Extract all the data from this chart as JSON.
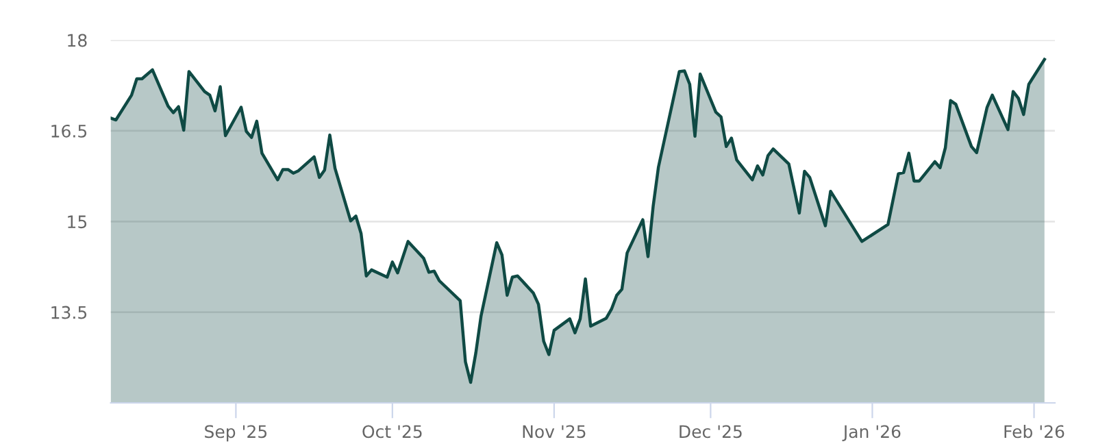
{
  "chart_data": {
    "type": "area",
    "x": [
      "2025-08-08",
      "2025-08-09",
      "2025-08-12",
      "2025-08-13",
      "2025-08-14",
      "2025-08-16",
      "2025-08-19",
      "2025-08-20",
      "2025-08-21",
      "2025-08-22",
      "2025-08-23",
      "2025-08-26",
      "2025-08-27",
      "2025-08-28",
      "2025-08-29",
      "2025-08-30",
      "2025-09-02",
      "2025-09-03",
      "2025-09-04",
      "2025-09-05",
      "2025-09-06",
      "2025-09-09",
      "2025-09-10",
      "2025-09-11",
      "2025-09-12",
      "2025-09-13",
      "2025-09-16",
      "2025-09-17",
      "2025-09-18",
      "2025-09-19",
      "2025-09-20",
      "2025-09-23",
      "2025-09-24",
      "2025-09-25",
      "2025-09-26",
      "2025-09-27",
      "2025-09-30",
      "2025-10-01",
      "2025-10-02",
      "2025-10-04",
      "2025-10-07",
      "2025-10-08",
      "2025-10-09",
      "2025-10-10",
      "2025-10-14",
      "2025-10-15",
      "2025-10-16",
      "2025-10-17",
      "2025-10-18",
      "2025-10-21",
      "2025-10-22",
      "2025-10-23",
      "2025-10-24",
      "2025-10-25",
      "2025-10-28",
      "2025-10-29",
      "2025-10-30",
      "2025-10-31",
      "2025-11-01",
      "2025-11-04",
      "2025-11-05",
      "2025-11-06",
      "2025-11-07",
      "2025-11-08",
      "2025-11-11",
      "2025-11-12",
      "2025-11-13",
      "2025-11-14",
      "2025-11-15",
      "2025-11-18",
      "2025-11-19",
      "2025-11-20",
      "2025-11-21",
      "2025-11-25",
      "2025-11-26",
      "2025-11-27",
      "2025-11-28",
      "2025-11-29",
      "2025-12-02",
      "2025-12-03",
      "2025-12-04",
      "2025-12-05",
      "2025-12-06",
      "2025-12-09",
      "2025-12-10",
      "2025-12-11",
      "2025-12-12",
      "2025-12-13",
      "2025-12-16",
      "2025-12-18",
      "2025-12-19",
      "2025-12-20",
      "2025-12-23",
      "2025-12-24",
      "2025-12-30",
      "2026-01-04",
      "2026-01-06",
      "2026-01-07",
      "2026-01-08",
      "2026-01-09",
      "2026-01-10",
      "2026-01-13",
      "2026-01-14",
      "2026-01-15",
      "2026-01-16",
      "2026-01-17",
      "2026-01-20",
      "2026-01-21",
      "2026-01-23",
      "2026-01-24",
      "2026-01-27",
      "2026-01-28",
      "2026-01-29",
      "2026-01-30",
      "2026-01-31",
      "2026-02-03"
    ],
    "series": [
      {
        "color": "#0f4a44",
        "values": [
          16.71,
          16.68,
          17.09,
          17.36,
          17.36,
          17.51,
          16.91,
          16.8,
          16.9,
          16.51,
          17.48,
          17.15,
          17.09,
          16.83,
          17.23,
          16.42,
          16.89,
          16.49,
          16.39,
          16.66,
          16.13,
          15.69,
          15.86,
          15.86,
          15.8,
          15.84,
          16.07,
          15.73,
          15.85,
          16.43,
          15.88,
          15.01,
          15.09,
          14.8,
          14.1,
          14.2,
          14.08,
          14.33,
          14.15,
          14.67,
          14.39,
          14.16,
          14.18,
          14.02,
          13.69,
          12.68,
          12.34,
          12.83,
          13.44,
          14.65,
          14.45,
          13.78,
          14.08,
          14.1,
          13.82,
          13.63,
          13.02,
          12.8,
          13.2,
          13.39,
          13.16,
          13.39,
          14.05,
          13.27,
          13.4,
          13.55,
          13.78,
          13.88,
          14.48,
          15.03,
          14.42,
          15.26,
          15.9,
          17.48,
          17.49,
          17.27,
          16.41,
          17.44,
          16.81,
          16.73,
          16.24,
          16.38,
          16.02,
          15.69,
          15.92,
          15.77,
          16.09,
          16.2,
          15.95,
          15.14,
          15.83,
          15.73,
          14.93,
          15.5,
          14.67,
          14.95,
          15.79,
          15.81,
          16.13,
          15.67,
          15.67,
          15.99,
          15.89,
          16.22,
          17.0,
          16.94,
          16.24,
          16.14,
          16.89,
          17.09,
          16.52,
          17.15,
          17.04,
          16.77,
          17.27,
          17.68
        ]
      }
    ],
    "xlim": [
      "2025-08-08",
      "2026-02-05"
    ],
    "xticks": [
      {
        "value": "2025-09-01",
        "label": "Sep '25"
      },
      {
        "value": "2025-10-01",
        "label": "Oct '25"
      },
      {
        "value": "2025-11-01",
        "label": "Nov '25"
      },
      {
        "value": "2025-12-01",
        "label": "Dec '25"
      },
      {
        "value": "2026-01-01",
        "label": "Jan '26"
      },
      {
        "value": "2026-02-01",
        "label": "Feb '26"
      }
    ],
    "ylim": [
      12,
      18
    ],
    "yticks": [
      13.5,
      15,
      16.5,
      18
    ],
    "grid": "y"
  }
}
